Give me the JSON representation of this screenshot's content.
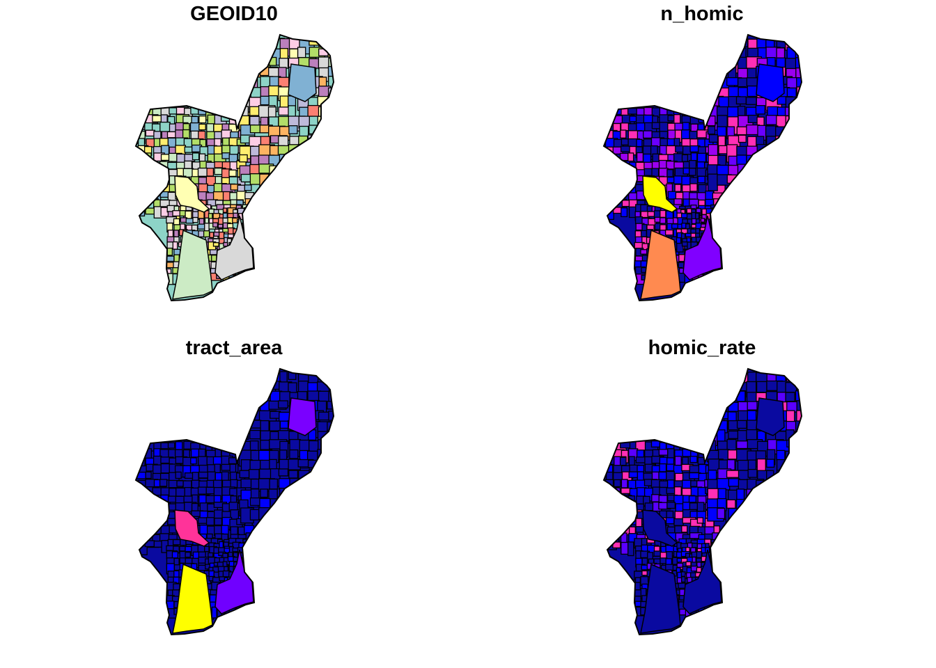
{
  "figure": {
    "panels": [
      {
        "title": "GEOID10",
        "palette": [
          "#8dd3c7",
          "#ffffb3",
          "#bebada",
          "#fb8072",
          "#80b1d3",
          "#fdb462",
          "#b3de69",
          "#fccde5",
          "#d9d9d9",
          "#bc80bd",
          "#ccebc5",
          "#ffed6f"
        ],
        "highlights": [
          {
            "region": "park",
            "color": "#ffffb3"
          },
          {
            "region": "southwest",
            "color": "#ccebc5"
          },
          {
            "region": "south",
            "color": "#d9d9d9"
          },
          {
            "region": "northeast-large",
            "color": "#80b1d3"
          }
        ]
      },
      {
        "title": "n_homic",
        "palette": [
          "#0a0aa0",
          "#0a0aa0",
          "#0a0aa0",
          "#0000ff",
          "#0000ff",
          "#6a00ff",
          "#9b00f0",
          "#ff2fb5",
          "#ff2fb5"
        ],
        "highlights": [
          {
            "region": "park",
            "color": "#ffff00"
          },
          {
            "region": "southwest",
            "color": "#ff8a50"
          },
          {
            "region": "south",
            "color": "#8000ff"
          },
          {
            "region": "northeast-large",
            "color": "#0000ff"
          }
        ]
      },
      {
        "title": "tract_area",
        "palette": [
          "#0a0aa0",
          "#0a0aa0",
          "#0a0aa0",
          "#0a0aa0",
          "#0a0aa0",
          "#0000ff"
        ],
        "highlights": [
          {
            "region": "park",
            "color": "#ff3399"
          },
          {
            "region": "southwest",
            "color": "#ffff00"
          },
          {
            "region": "south",
            "color": "#7000ff"
          },
          {
            "region": "northeast-large",
            "color": "#7a00ff"
          }
        ]
      },
      {
        "title": "homic_rate",
        "palette": [
          "#0a0aa0",
          "#0a0aa0",
          "#0a0aa0",
          "#0a0aa0",
          "#0000ff",
          "#0000ff",
          "#5a00ff",
          "#ff2fb5"
        ],
        "highlights": [
          {
            "region": "park",
            "color": "#0a0aa0"
          },
          {
            "region": "southwest",
            "color": "#0a0aa0"
          },
          {
            "region": "south",
            "color": "#0a0aa0"
          },
          {
            "region": "northeast-large",
            "color": "#0a0aa0"
          }
        ]
      }
    ]
  }
}
